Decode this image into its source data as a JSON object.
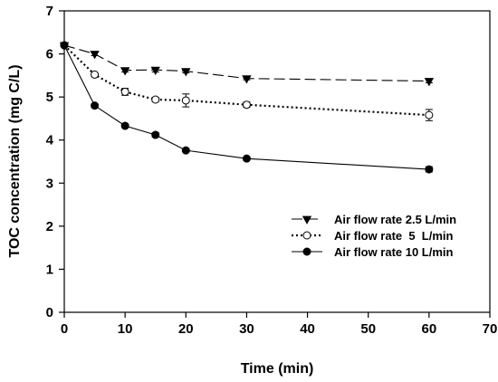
{
  "chart_data": {
    "type": "line",
    "xlabel": "Time (min)",
    "ylabel": "TOC concentration (mg C/L)",
    "xlim": [
      0,
      70
    ],
    "ylim": [
      0,
      7
    ],
    "xticks": [
      0,
      10,
      20,
      30,
      40,
      50,
      60,
      70
    ],
    "yticks": [
      0,
      1,
      2,
      3,
      4,
      5,
      6,
      7
    ],
    "grid": false,
    "legend_position": "right",
    "series": [
      {
        "name": "Air flow rate 2.5 L/min",
        "marker": "triangle-down",
        "line": "dashed",
        "x": [
          0,
          5,
          10,
          15,
          20,
          30,
          60
        ],
        "y": [
          6.2,
          6.0,
          5.62,
          5.63,
          5.6,
          5.43,
          5.37
        ],
        "err": [
          0.03,
          0.04,
          0.04,
          0.05,
          0.04,
          0.03,
          0.04
        ]
      },
      {
        "name": "Air flow rate  5  L/min",
        "marker": "circle-open",
        "line": "dotted",
        "x": [
          0,
          5,
          10,
          15,
          20,
          30,
          60
        ],
        "y": [
          6.2,
          5.52,
          5.12,
          4.94,
          4.92,
          4.82,
          4.58
        ],
        "err": [
          0.03,
          0.04,
          0.08,
          0.05,
          0.15,
          0.06,
          0.13
        ]
      },
      {
        "name": "Air flow rate 10 L/min",
        "marker": "circle-filled",
        "line": "solid",
        "x": [
          0,
          5,
          10,
          15,
          20,
          30,
          60
        ],
        "y": [
          6.2,
          4.8,
          4.33,
          4.12,
          3.76,
          3.57,
          3.32
        ],
        "err": [
          0.03,
          0.04,
          0.04,
          0.05,
          0.03,
          0.03,
          0.06
        ]
      }
    ]
  }
}
